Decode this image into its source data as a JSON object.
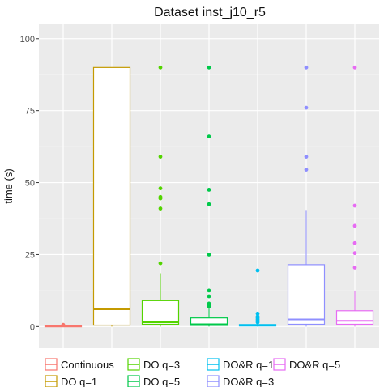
{
  "chart_data": {
    "type": "box",
    "title": "Dataset inst_j10_r5",
    "xlabel": "",
    "ylabel": "time (s)",
    "ylim": [
      -7.5,
      105
    ],
    "yticks": [
      0,
      25,
      50,
      75,
      100
    ],
    "grid": true,
    "legend_position": "bottom",
    "series": [
      {
        "name": "Continuous",
        "color": "#F8766D",
        "min": 0.0,
        "q1": 0.0,
        "median": 0.1,
        "q3": 0.2,
        "max": 0.3,
        "outliers": [
          0.6
        ]
      },
      {
        "name": "DO q=1",
        "color": "#C49A00",
        "min": 0.0,
        "q1": 0.5,
        "median": 6.0,
        "q3": 90.0,
        "max": 90.0,
        "outliers": []
      },
      {
        "name": "DO q=3",
        "color": "#53D400",
        "min": 0.0,
        "q1": 0.8,
        "median": 1.5,
        "q3": 9.0,
        "max": 18.5,
        "outliers": [
          22,
          41,
          44.5,
          45,
          48,
          59,
          90
        ]
      },
      {
        "name": "DO q=5",
        "color": "#00C94A",
        "min": 0.0,
        "q1": 0.4,
        "median": 0.8,
        "q3": 3.0,
        "max": 6.5,
        "outliers": [
          7,
          7.5,
          8,
          10.5,
          12.5,
          25,
          42.5,
          47.5,
          66,
          90
        ]
      },
      {
        "name": "DO&R q=1",
        "color": "#00C0F0",
        "min": 0.0,
        "q1": 0.2,
        "median": 0.4,
        "q3": 0.7,
        "max": 1.0,
        "outliers": [
          1.5,
          2.0,
          2.5,
          3.0,
          3.5,
          4.5,
          19.5
        ]
      },
      {
        "name": "DO&R q=3",
        "color": "#8F8FFF",
        "min": 0.0,
        "q1": 0.8,
        "median": 2.5,
        "q3": 21.5,
        "max": 40.5,
        "outliers": [
          54.5,
          59,
          76,
          90
        ]
      },
      {
        "name": "DO&R q=5",
        "color": "#E76BF3",
        "min": 0.0,
        "q1": 0.8,
        "median": 2.0,
        "q3": 5.5,
        "max": 12.5,
        "outliers": [
          20.5,
          25.5,
          29,
          35,
          42,
          90
        ]
      }
    ]
  }
}
